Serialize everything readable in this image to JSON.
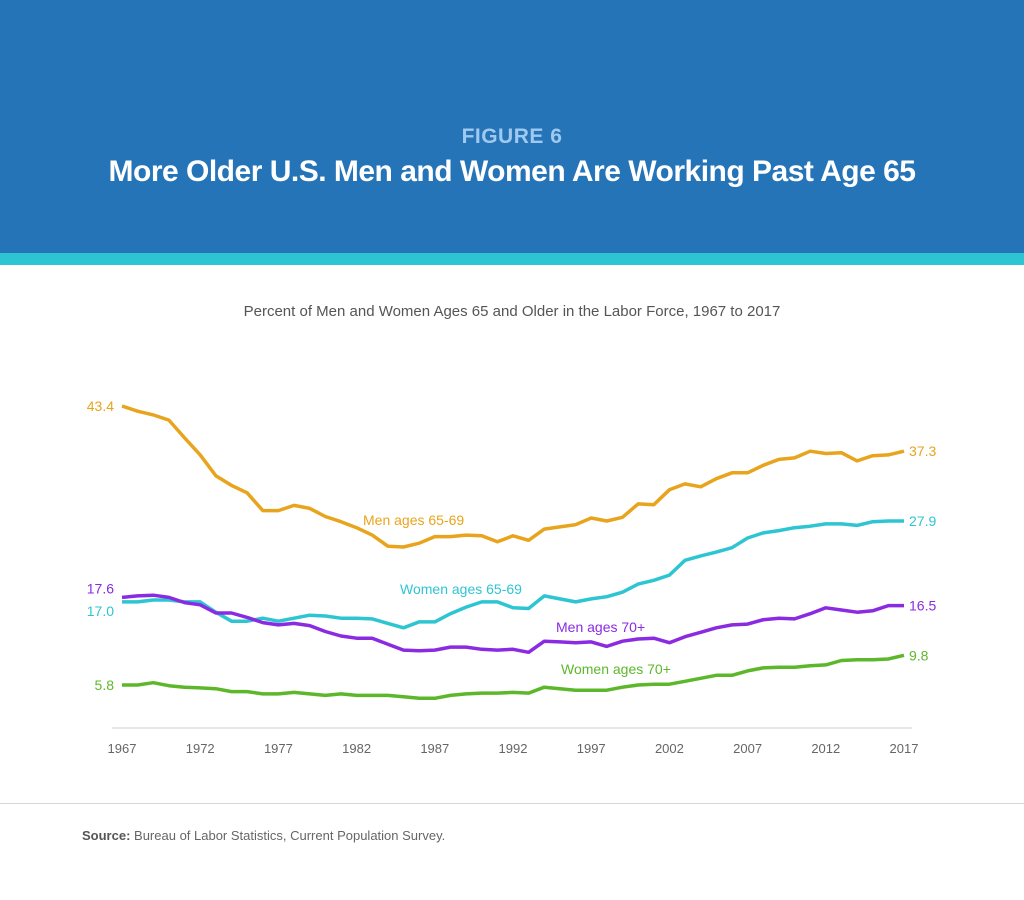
{
  "header": {
    "figure_label": "FIGURE 6",
    "title": "More Older U.S. Men and Women Are Working Past Age 65"
  },
  "colors": {
    "header_bg": "#2574b8",
    "stripe": "#2ec5d3"
  },
  "chart_data": {
    "type": "line",
    "title": "Percent of Men and Women Ages 65 and Older in the Labor Force, 1967 to 2017",
    "xlabel": "",
    "ylabel": "",
    "xlim": [
      1967,
      2017
    ],
    "ylim": [
      0,
      45
    ],
    "x_ticks": [
      "1967",
      "1972",
      "1977",
      "1982",
      "1987",
      "1992",
      "1997",
      "2002",
      "2007",
      "2012",
      "2017"
    ],
    "grid": false,
    "legend": "inline labels",
    "x": [
      1967,
      1968,
      1969,
      1970,
      1971,
      1972,
      1973,
      1974,
      1975,
      1976,
      1977,
      1978,
      1979,
      1980,
      1981,
      1982,
      1983,
      1984,
      1985,
      1986,
      1987,
      1988,
      1989,
      1990,
      1991,
      1992,
      1993,
      1994,
      1995,
      1996,
      1997,
      1998,
      1999,
      2000,
      2001,
      2002,
      2003,
      2004,
      2005,
      2006,
      2007,
      2008,
      2009,
      2010,
      2011,
      2012,
      2013,
      2014,
      2015,
      2016,
      2017
    ],
    "series": [
      {
        "name": "Men ages 65-69",
        "color": "#e8a41c",
        "start_label": "43.4",
        "end_label": "37.3",
        "values": [
          43.4,
          42.7,
          42.2,
          41.5,
          39.1,
          36.8,
          34.0,
          32.7,
          31.7,
          29.3,
          29.3,
          30.0,
          29.6,
          28.5,
          27.8,
          27.0,
          26.0,
          24.5,
          24.4,
          24.9,
          25.8,
          25.8,
          26.0,
          25.9,
          25.1,
          25.9,
          25.3,
          26.8,
          27.1,
          27.4,
          28.3,
          27.9,
          28.4,
          30.2,
          30.1,
          32.1,
          32.9,
          32.5,
          33.6,
          34.4,
          34.4,
          35.4,
          36.2,
          36.4,
          37.3,
          37.0,
          37.1,
          36.0,
          36.7,
          36.8,
          37.3
        ]
      },
      {
        "name": "Women ages 65-69",
        "color": "#2ec5d3",
        "start_label": "17.0",
        "end_label": "27.9",
        "values": [
          17.0,
          17.0,
          17.25,
          17.25,
          17.0,
          17.0,
          15.6,
          14.4,
          14.4,
          14.8,
          14.4,
          14.8,
          15.2,
          15.1,
          14.8,
          14.8,
          14.7,
          14.1,
          13.5,
          14.3,
          14.3,
          15.4,
          16.3,
          17.0,
          17.0,
          16.2,
          16.1,
          17.8,
          17.4,
          17.0,
          17.4,
          17.7,
          18.3,
          19.4,
          19.9,
          20.6,
          22.6,
          23.2,
          23.7,
          24.3,
          25.6,
          26.3,
          26.6,
          27.0,
          27.2,
          27.5,
          27.5,
          27.3,
          27.8,
          27.9,
          27.9
        ]
      },
      {
        "name": "Men ages 70+",
        "color": "#8a2be2",
        "start_label": "17.6",
        "end_label": "16.5",
        "values": [
          17.6,
          17.8,
          17.9,
          17.6,
          16.9,
          16.6,
          15.5,
          15.5,
          14.9,
          14.2,
          13.9,
          14.1,
          13.8,
          13.0,
          12.4,
          12.1,
          12.1,
          11.3,
          10.5,
          10.4,
          10.5,
          10.9,
          10.9,
          10.6,
          10.5,
          10.6,
          10.2,
          11.7,
          11.6,
          11.5,
          11.6,
          11.0,
          11.7,
          12.0,
          12.1,
          11.5,
          12.3,
          12.9,
          13.5,
          13.9,
          14.0,
          14.6,
          14.8,
          14.7,
          15.4,
          16.2,
          15.9,
          15.6,
          15.8,
          16.5,
          16.5
        ]
      },
      {
        "name": "Women ages 70+",
        "color": "#5cb82a",
        "start_label": "5.8",
        "end_label": "9.8",
        "values": [
          5.8,
          5.8,
          6.1,
          5.7,
          5.5,
          5.4,
          5.3,
          4.9,
          4.9,
          4.6,
          4.6,
          4.8,
          4.6,
          4.4,
          4.6,
          4.4,
          4.4,
          4.4,
          4.2,
          4.0,
          4.0,
          4.4,
          4.6,
          4.7,
          4.7,
          4.8,
          4.7,
          5.5,
          5.3,
          5.1,
          5.1,
          5.1,
          5.5,
          5.8,
          5.9,
          5.9,
          6.3,
          6.7,
          7.1,
          7.1,
          7.7,
          8.1,
          8.2,
          8.2,
          8.4,
          8.5,
          9.1,
          9.2,
          9.2,
          9.3,
          9.8
        ]
      }
    ]
  },
  "source": {
    "label": "Source:",
    "text": "Bureau of Labor Statistics, Current Population Survey."
  }
}
